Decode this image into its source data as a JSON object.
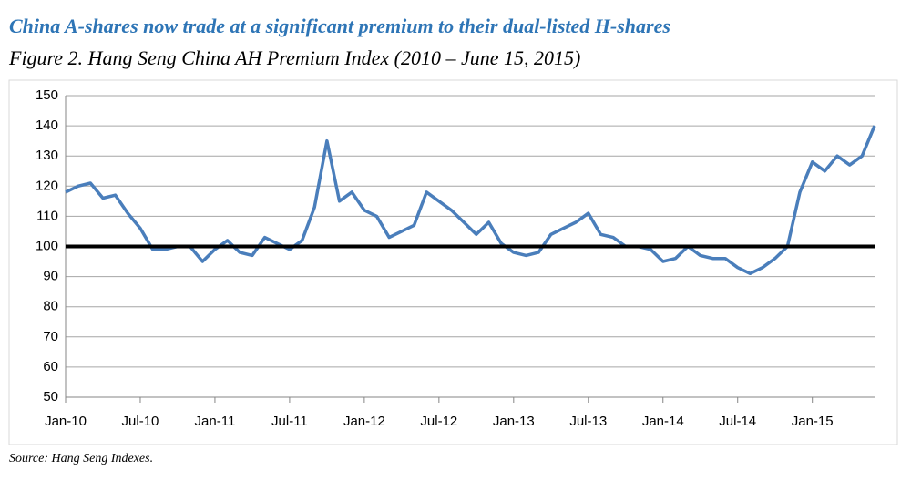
{
  "chart_data": {
    "type": "line",
    "title": "China A-shares now trade at a significant premium to their dual-listed H-shares",
    "subtitle": "Figure 2. Hang Seng China AH Premium Index (2010 – June 15, 2015)",
    "source": "Source: Hang Seng Indexes.",
    "categories": [
      "Jan-10",
      null,
      null,
      null,
      null,
      null,
      "Jul-10",
      null,
      null,
      null,
      null,
      null,
      "Jan-11",
      null,
      null,
      null,
      null,
      null,
      "Jul-11",
      null,
      null,
      null,
      null,
      null,
      "Jan-12",
      null,
      null,
      null,
      null,
      null,
      "Jul-12",
      null,
      null,
      null,
      null,
      null,
      "Jan-13",
      null,
      null,
      null,
      null,
      null,
      "Jul-13",
      null,
      null,
      null,
      null,
      null,
      "Jan-14",
      null,
      null,
      null,
      null,
      null,
      "Jul-14",
      null,
      null,
      null,
      null,
      null,
      "Jan-15",
      null,
      null,
      null,
      null,
      null
    ],
    "series": [
      {
        "name": "Hang Seng China AH Premium Index",
        "color": "#4a7ebb",
        "values": [
          118,
          120,
          121,
          116,
          117,
          111,
          106,
          99,
          99,
          100,
          100,
          95,
          99,
          102,
          98,
          97,
          103,
          101,
          99,
          102,
          113,
          135,
          115,
          118,
          112,
          110,
          103,
          105,
          107,
          118,
          115,
          112,
          108,
          104,
          108,
          101,
          98,
          97,
          98,
          104,
          106,
          108,
          111,
          104,
          103,
          100,
          100,
          99,
          95,
          96,
          100,
          97,
          96,
          96,
          93,
          91,
          93,
          96,
          100,
          118,
          128,
          125,
          130,
          127,
          130,
          140
        ]
      }
    ],
    "reference_value": 100,
    "ylim": [
      50,
      150
    ],
    "yticks": [
      50,
      60,
      70,
      80,
      90,
      100,
      110,
      120,
      130,
      140,
      150
    ],
    "grid": true
  }
}
